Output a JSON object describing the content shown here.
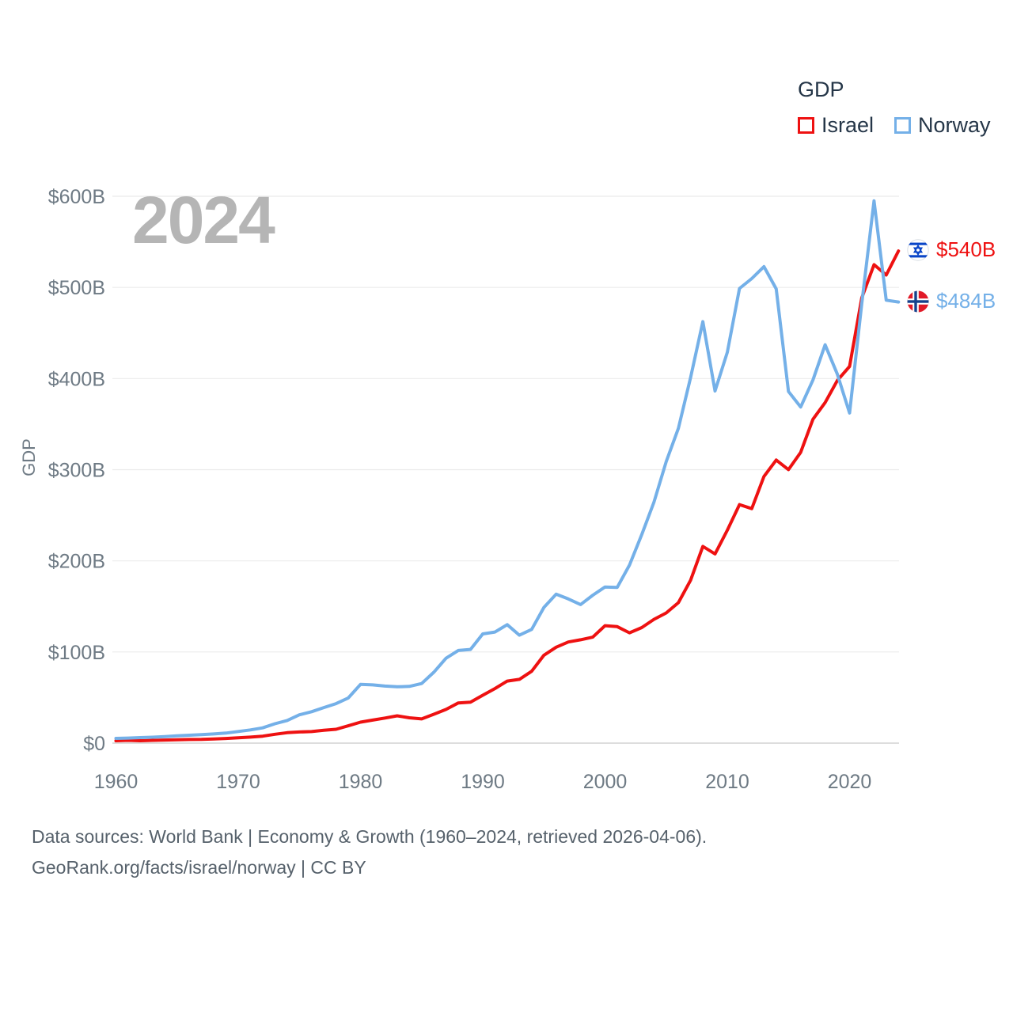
{
  "legend": {
    "title": "GDP",
    "items": [
      {
        "label": "Israel",
        "color": "#ee1111"
      },
      {
        "label": "Norway",
        "color": "#74b0e8"
      }
    ]
  },
  "watermark": "2024",
  "end_labels": [
    {
      "country": "Israel",
      "value": "$540B",
      "color": "#ee1111",
      "flag_icon": "israel-flag-icon"
    },
    {
      "country": "Norway",
      "value": "$484B",
      "color": "#74b0e8",
      "flag_icon": "norway-flag-icon"
    }
  ],
  "footer": {
    "line1": "Data sources: World Bank | Economy & Growth (1960–2024, retrieved 2026-04-06).",
    "line2": "GeoRank.org/facts/israel/norway | CC BY"
  },
  "chart_data": {
    "type": "line",
    "title": "GDP",
    "xlabel": "",
    "ylabel": "GDP",
    "grid": true,
    "legend_position": "top-right",
    "x_range": [
      1960,
      2024
    ],
    "ylim": [
      0,
      600
    ],
    "x_ticks": [
      1960,
      1970,
      1980,
      1990,
      2000,
      2010,
      2020
    ],
    "y_ticks": [
      {
        "value": 0,
        "label": "$0"
      },
      {
        "value": 100,
        "label": "$100B"
      },
      {
        "value": 200,
        "label": "$200B"
      },
      {
        "value": 300,
        "label": "$300B"
      },
      {
        "value": 400,
        "label": "$400B"
      },
      {
        "value": 500,
        "label": "$500B"
      },
      {
        "value": 600,
        "label": "$600B"
      }
    ],
    "x": [
      1960,
      1961,
      1962,
      1963,
      1964,
      1965,
      1966,
      1967,
      1968,
      1969,
      1970,
      1971,
      1972,
      1973,
      1974,
      1975,
      1976,
      1977,
      1978,
      1979,
      1980,
      1981,
      1982,
      1983,
      1984,
      1985,
      1986,
      1987,
      1988,
      1989,
      1990,
      1991,
      1992,
      1993,
      1994,
      1995,
      1996,
      1997,
      1998,
      1999,
      2000,
      2001,
      2002,
      2003,
      2004,
      2005,
      2006,
      2007,
      2008,
      2009,
      2010,
      2011,
      2012,
      2013,
      2014,
      2015,
      2016,
      2017,
      2018,
      2019,
      2020,
      2021,
      2022,
      2023,
      2024
    ],
    "series": [
      {
        "name": "Israel",
        "color": "#ee1111",
        "unit": "billion USD",
        "values": [
          2.6,
          3.0,
          2.6,
          3.0,
          3.4,
          3.7,
          4.0,
          4.1,
          4.6,
          5.1,
          5.8,
          6.6,
          7.6,
          9.7,
          11.5,
          12.2,
          12.7,
          14.1,
          15.2,
          19.0,
          23.0,
          25.3,
          27.5,
          30.0,
          27.8,
          26.6,
          31.7,
          37.0,
          44.1,
          45.0,
          52.5,
          59.9,
          68.1,
          70.0,
          78.8,
          96.5,
          105.2,
          111.0,
          113.4,
          116.3,
          128.9,
          127.8,
          121.0,
          126.8,
          135.8,
          142.8,
          154.1,
          178.7,
          215.9,
          207.6,
          233.6,
          261.7,
          257.3,
          292.5,
          310.6,
          300.1,
          319.0,
          355.3,
          373.6,
          397.9,
          413.3,
          488.5,
          525.0,
          513.6,
          540.0
        ]
      },
      {
        "name": "Norway",
        "color": "#74b0e8",
        "unit": "billion USD",
        "values": [
          5.2,
          5.6,
          6.1,
          6.5,
          7.2,
          8.1,
          8.7,
          9.4,
          10.1,
          11.0,
          12.8,
          14.5,
          16.8,
          21.3,
          24.8,
          31.1,
          34.5,
          39.0,
          43.3,
          49.6,
          64.4,
          63.9,
          62.6,
          61.8,
          62.3,
          65.4,
          77.8,
          93.2,
          101.7,
          102.8,
          119.8,
          121.9,
          130.0,
          118.4,
          124.8,
          148.9,
          163.4,
          158.2,
          152.0,
          162.3,
          171.3,
          170.9,
          195.4,
          228.8,
          264.3,
          308.9,
          345.4,
          401.1,
          462.5,
          386.4,
          428.8,
          498.8,
          509.7,
          522.8,
          498.4,
          385.8,
          368.8,
          398.4,
          437.0,
          404.9,
          362.2,
          482.2,
          595.0,
          486.0,
          484.0
        ]
      }
    ]
  }
}
